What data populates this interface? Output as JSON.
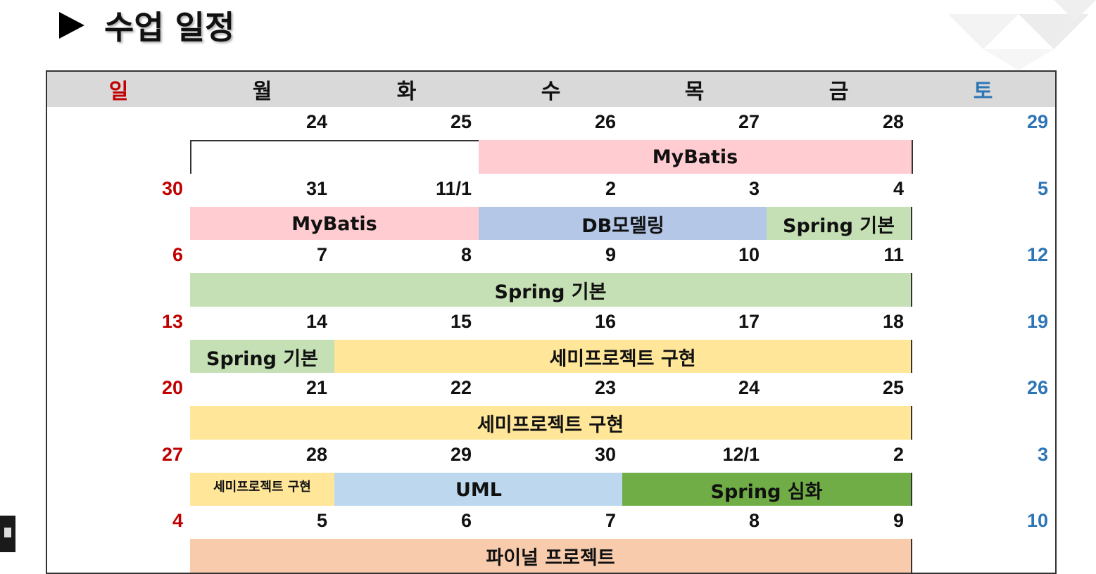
{
  "title": "수업 일정",
  "colors": {
    "sunday": "#c00000",
    "saturday": "#2e75b6",
    "mybatis": "#ffccd1",
    "db_modeling": "#b4c7e7",
    "spring_basic": "#c5e0b4",
    "semi_project": "#ffe699",
    "uml": "#bdd7ee",
    "spring_advanced": "#70ad47",
    "final_project": "#f8cbad"
  },
  "weekdays": [
    "일",
    "월",
    "화",
    "수",
    "목",
    "금",
    "토"
  ],
  "weeks": [
    {
      "days": [
        "",
        "24",
        "25",
        "26",
        "27",
        "28",
        "29"
      ],
      "events": [
        {
          "label": "MyBatis",
          "start": 3,
          "span": 3,
          "color": "mybatis"
        }
      ]
    },
    {
      "days": [
        "30",
        "31",
        "11/1",
        "2",
        "3",
        "4",
        "5"
      ],
      "events": [
        {
          "label": "MyBatis",
          "start": 1,
          "span": 2,
          "color": "mybatis"
        },
        {
          "label": "DB모델링",
          "start": 3,
          "span": 2,
          "color": "db_modeling"
        },
        {
          "label": "Spring 기본",
          "start": 5,
          "span": 1,
          "color": "spring_basic"
        }
      ]
    },
    {
      "days": [
        "6",
        "7",
        "8",
        "9",
        "10",
        "11",
        "12"
      ],
      "events": [
        {
          "label": "Spring 기본",
          "start": 1,
          "span": 5,
          "color": "spring_basic"
        }
      ]
    },
    {
      "days": [
        "13",
        "14",
        "15",
        "16",
        "17",
        "18",
        "19"
      ],
      "events": [
        {
          "label": "Spring 기본",
          "start": 1,
          "span": 1,
          "color": "spring_basic"
        },
        {
          "label": "세미프로젝트 구현",
          "start": 2,
          "span": 4,
          "color": "semi_project"
        }
      ]
    },
    {
      "days": [
        "20",
        "21",
        "22",
        "23",
        "24",
        "25",
        "26"
      ],
      "events": [
        {
          "label": "세미프로젝트 구현",
          "start": 1,
          "span": 5,
          "color": "semi_project"
        }
      ]
    },
    {
      "days": [
        "27",
        "28",
        "29",
        "30",
        "12/1",
        "2",
        "3"
      ],
      "events": [
        {
          "label": "세미프로젝트 구현",
          "start": 1,
          "span": 1,
          "color": "semi_project",
          "small": true
        },
        {
          "label": "UML",
          "start": 2,
          "span": 2,
          "color": "uml"
        },
        {
          "label": "Spring 심화",
          "start": 4,
          "span": 2,
          "color": "spring_advanced"
        }
      ]
    },
    {
      "days": [
        "4",
        "5",
        "6",
        "7",
        "8",
        "9",
        "10"
      ],
      "events": [
        {
          "label": "파이널 프로젝트",
          "start": 1,
          "span": 5,
          "color": "final_project"
        }
      ]
    }
  ]
}
